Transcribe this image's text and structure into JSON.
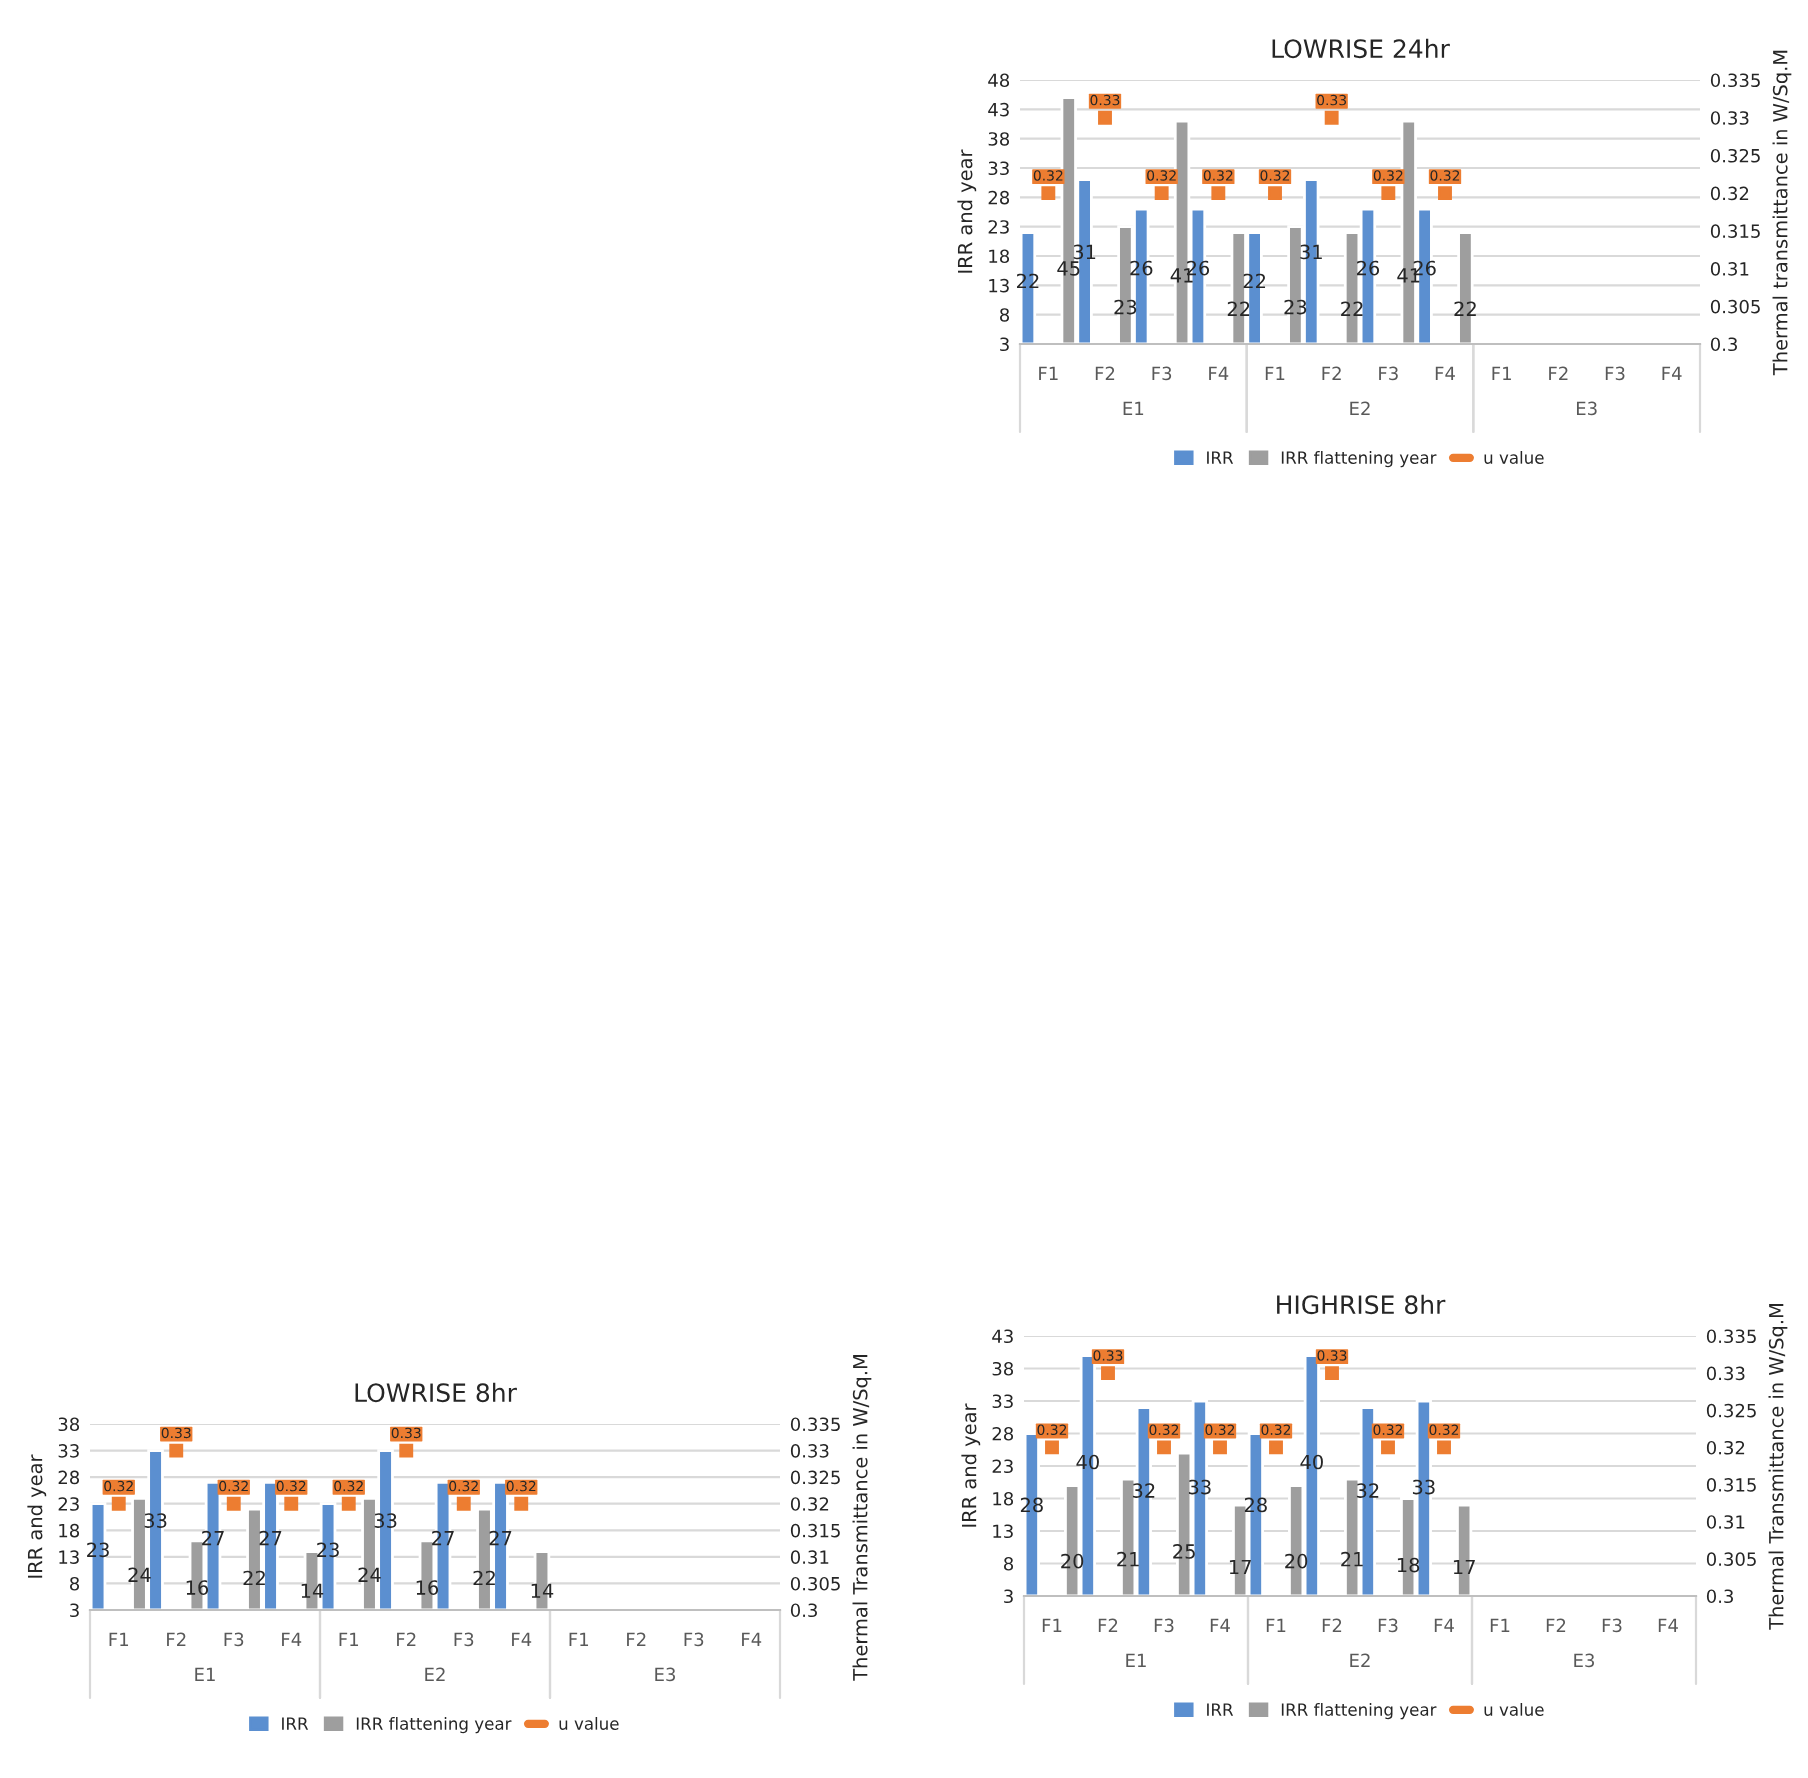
{
  "chart_data": [
    {
      "type": "bar",
      "title": "LOWRISE 24hr",
      "ylabel": "IRR and year",
      "y2label": "Thermal transmittance in W/Sq.M",
      "categories": [
        "F1",
        "F2",
        "F3",
        "F4",
        "F1",
        "F2",
        "F3",
        "F4",
        "F1",
        "F2",
        "F3",
        "F4"
      ],
      "series": [
        {
          "name": "IRR",
          "color": "#5b8fd0",
          "values": [
            22,
            31,
            26,
            26,
            22,
            31,
            26,
            26,
            null,
            null,
            null,
            null
          ]
        },
        {
          "name": "IRR flattening year",
          "color": "#9e9e9e",
          "values": [
            45,
            23,
            41,
            22,
            23,
            22,
            41,
            22,
            null,
            null,
            null,
            null
          ]
        },
        {
          "name": "u value",
          "type": "scatter",
          "axis": "y2",
          "color": "#ed7d31",
          "values": [
            0.32,
            0.33,
            0.32,
            0.32,
            0.32,
            0.33,
            0.32,
            0.32,
            null,
            null,
            null,
            null
          ]
        }
      ],
      "ylim": [
        3,
        48
      ],
      "yticks": [
        3,
        8,
        13,
        18,
        23,
        28,
        33,
        38,
        43,
        48
      ],
      "y2lim": [
        0.3,
        0.335
      ],
      "y2ticks": [
        0.3,
        0.305,
        0.31,
        0.315,
        0.32,
        0.325,
        0.33,
        0.335
      ],
      "annotations": [
        "E1",
        "E2",
        "E3"
      ],
      "data_labels": true,
      "grid": "y",
      "legend": "bottom",
      "marker": "square"
    },
    {
      "type": "bar",
      "title": "LOWRISE 8hr",
      "ylabel": "IRR and year",
      "y2label": "Thermal Transmittance in W/Sq.M",
      "categories": [
        "F1",
        "F2",
        "F3",
        "F4",
        "F1",
        "F2",
        "F3",
        "F4",
        "F1",
        "F2",
        "F3",
        "F4"
      ],
      "series": [
        {
          "name": "IRR",
          "color": "#5b8fd0",
          "values": [
            23,
            33,
            27,
            27,
            23,
            33,
            27,
            27,
            null,
            null,
            null,
            null
          ]
        },
        {
          "name": "IRR flattening year",
          "color": "#9e9e9e",
          "values": [
            24,
            16,
            22,
            14,
            24,
            16,
            22,
            14,
            null,
            null,
            null,
            null
          ]
        },
        {
          "name": "u value",
          "type": "scatter",
          "axis": "y2",
          "color": "#ed7d31",
          "values": [
            0.32,
            0.33,
            0.32,
            0.32,
            0.32,
            0.33,
            0.32,
            0.32,
            null,
            null,
            null,
            null
          ]
        }
      ],
      "ylim": [
        3,
        38
      ],
      "yticks": [
        3,
        8,
        13,
        18,
        23,
        28,
        33,
        38
      ],
      "y2lim": [
        0.3,
        0.335
      ],
      "y2ticks": [
        0.3,
        0.305,
        0.31,
        0.315,
        0.32,
        0.325,
        0.33,
        0.335
      ],
      "annotations": [
        "E1",
        "E2",
        "E3"
      ],
      "data_labels": true,
      "grid": "y",
      "legend": "bottom",
      "marker": "square"
    },
    {
      "type": "bar",
      "title": "HIGHRISE 8hr",
      "ylabel": "IRR and year",
      "y2label": "Thermal Transmittance in W/Sq.M",
      "categories": [
        "F1",
        "F2",
        "F3",
        "F4",
        "F1",
        "F2",
        "F3",
        "F4",
        "F1",
        "F2",
        "F3",
        "F4"
      ],
      "series": [
        {
          "name": "IRR",
          "color": "#5b8fd0",
          "values": [
            28,
            40,
            32,
            33,
            28,
            40,
            32,
            33,
            null,
            null,
            null,
            null
          ]
        },
        {
          "name": "IRR flattening year",
          "color": "#9e9e9e",
          "values": [
            20,
            21,
            25,
            17,
            20,
            21,
            18,
            17,
            null,
            null,
            null,
            null
          ]
        },
        {
          "name": "u value",
          "type": "scatter",
          "axis": "y2",
          "color": "#ed7d31",
          "values": [
            0.32,
            0.33,
            0.32,
            0.32,
            0.32,
            0.33,
            0.32,
            0.32,
            null,
            null,
            null,
            null
          ]
        }
      ],
      "ylim": [
        3,
        43
      ],
      "yticks": [
        3,
        8,
        13,
        18,
        23,
        28,
        33,
        38,
        43
      ],
      "y2lim": [
        0.3,
        0.335
      ],
      "y2ticks": [
        0.3,
        0.305,
        0.31,
        0.315,
        0.32,
        0.325,
        0.33,
        0.335
      ],
      "annotations": [
        "E1",
        "E2",
        "E3"
      ],
      "data_labels": true,
      "grid": "y",
      "legend": "bottom",
      "marker": "square"
    }
  ]
}
